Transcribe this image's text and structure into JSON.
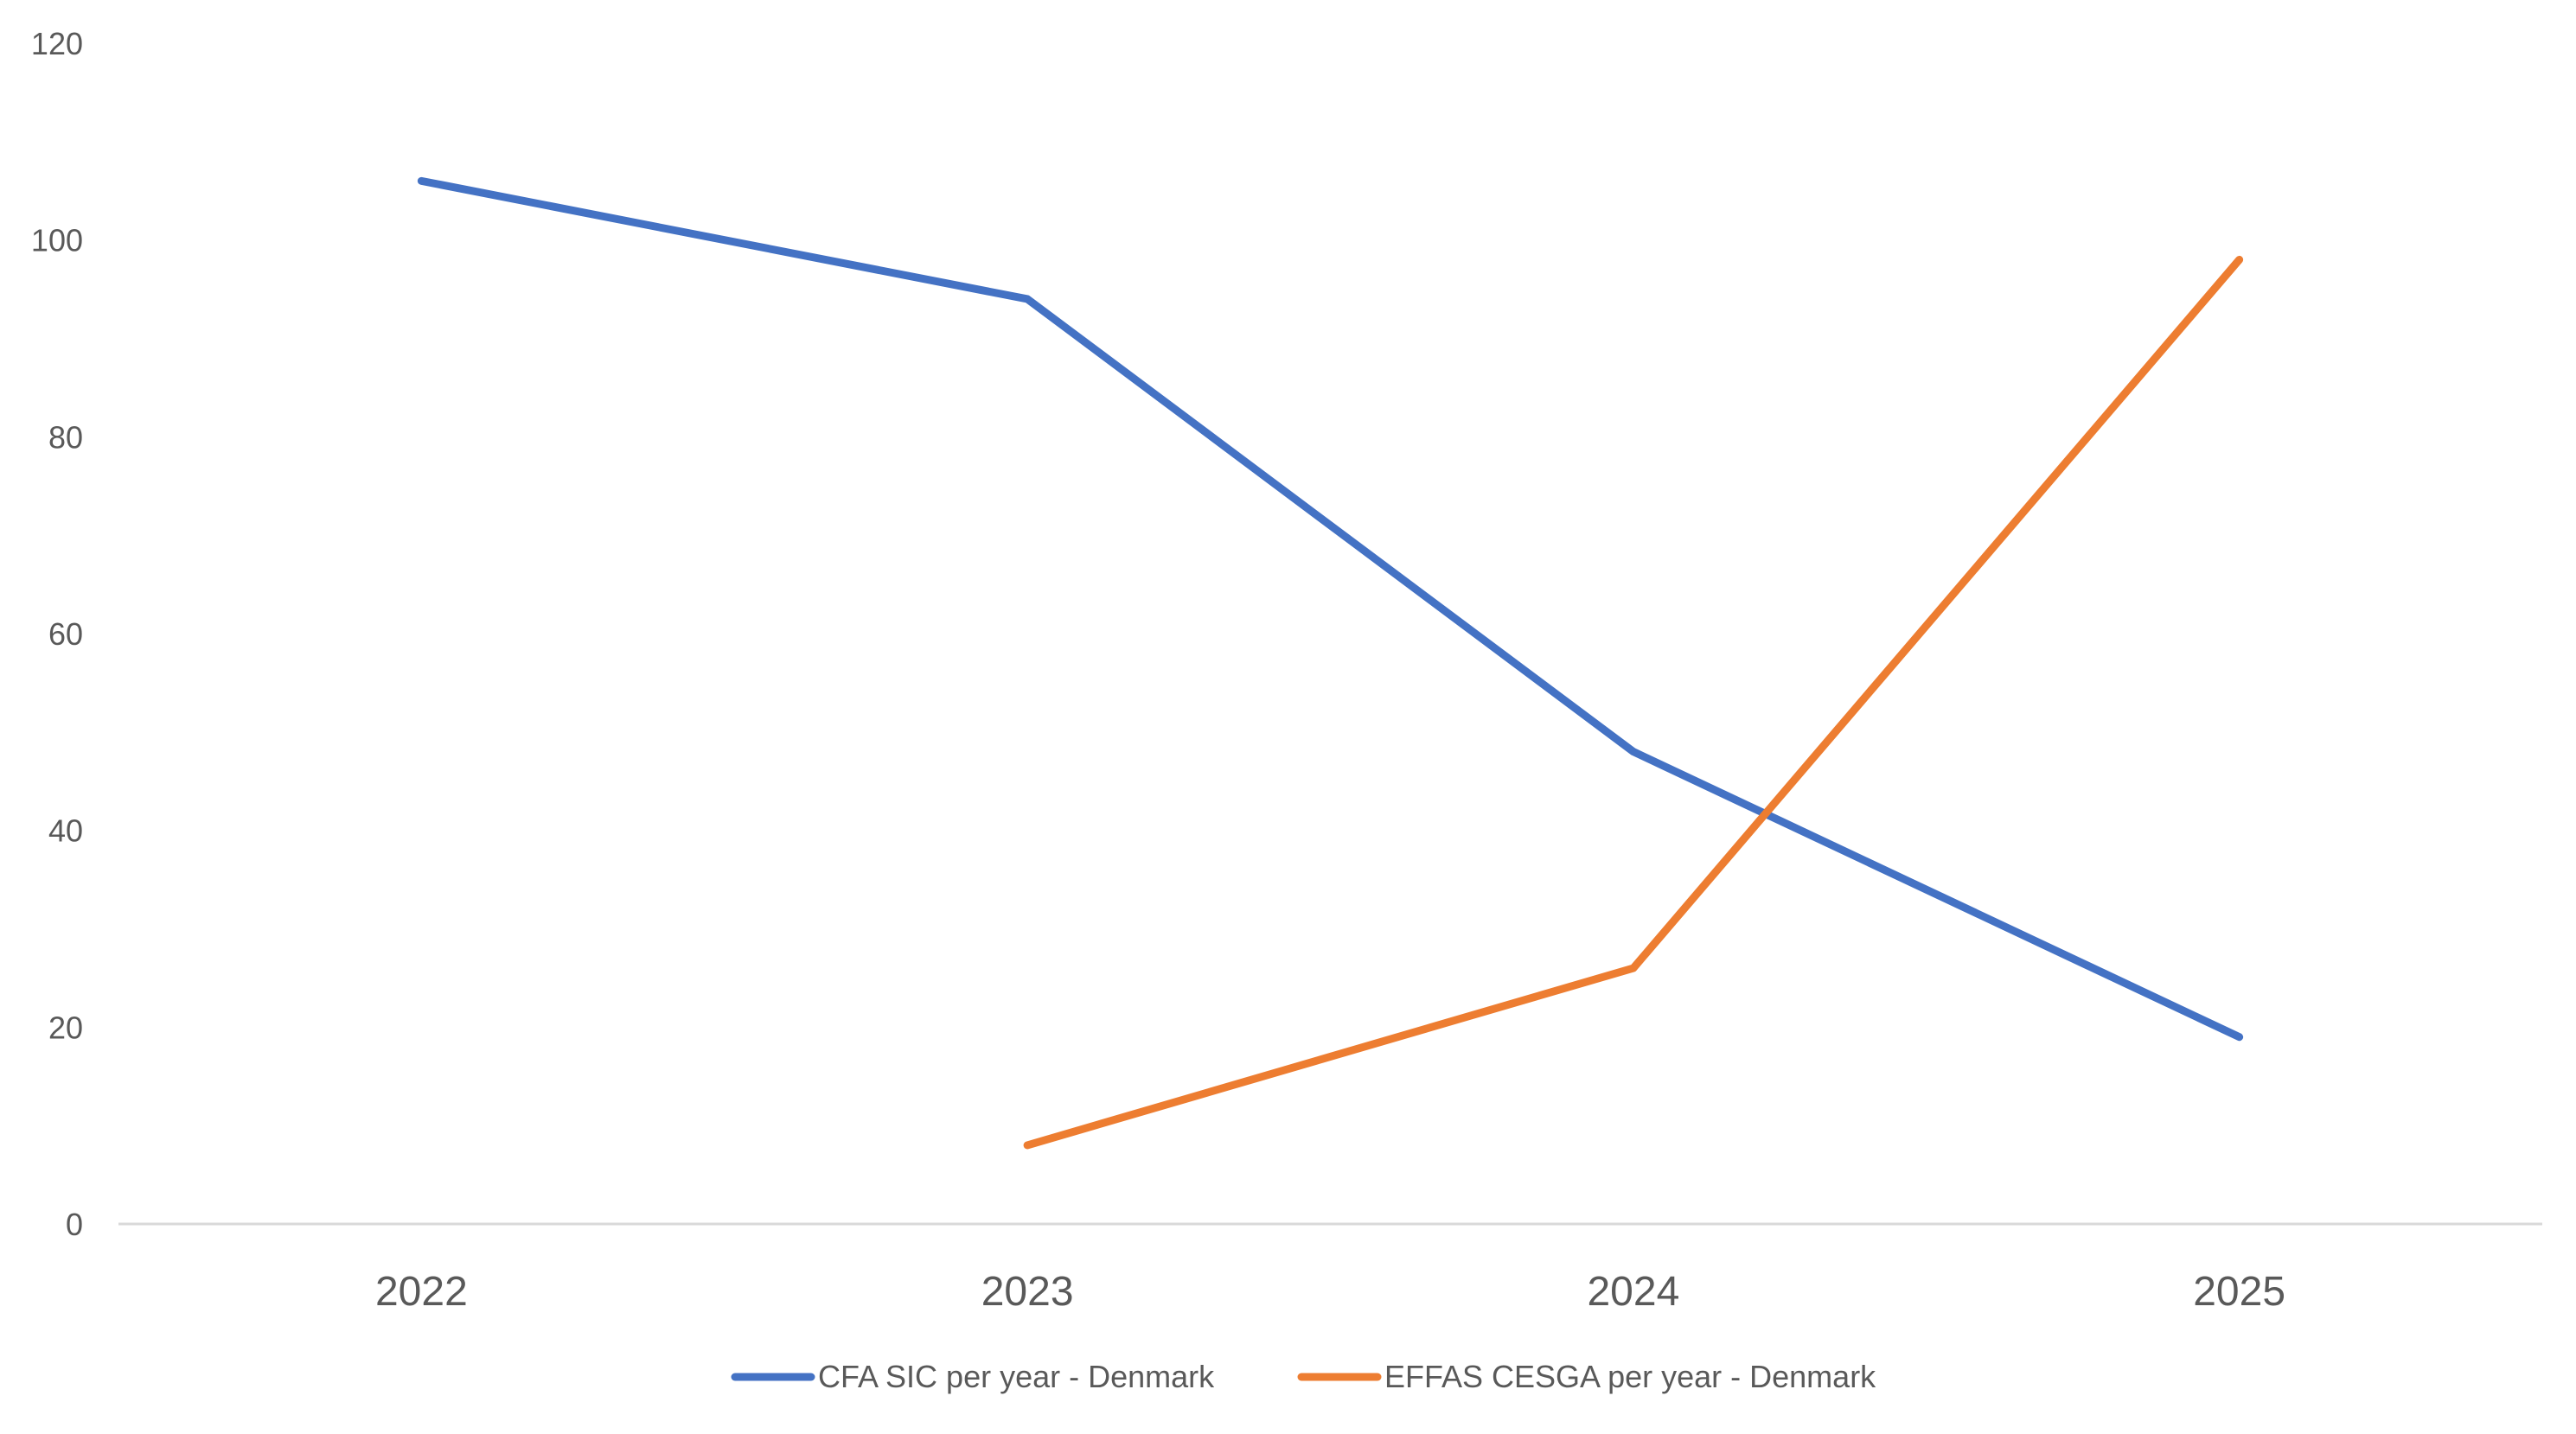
{
  "chart_data": {
    "type": "line",
    "title": "",
    "xlabel": "",
    "ylabel": "",
    "categories": [
      "2022",
      "2023",
      "2024",
      "2025"
    ],
    "ylim": [
      0,
      120
    ],
    "yticks": [
      "0",
      "20",
      "40",
      "60",
      "80",
      "100",
      "120"
    ],
    "grid": false,
    "legend_position": "bottom",
    "series": [
      {
        "name": "CFA SIC per year - Denmark",
        "color": "#4472C4",
        "values": [
          106,
          94,
          48,
          19
        ]
      },
      {
        "name": "EFFAS CESGA per year - Denmark",
        "color": "#ED7D31",
        "values": [
          null,
          8,
          26,
          98
        ]
      }
    ]
  }
}
